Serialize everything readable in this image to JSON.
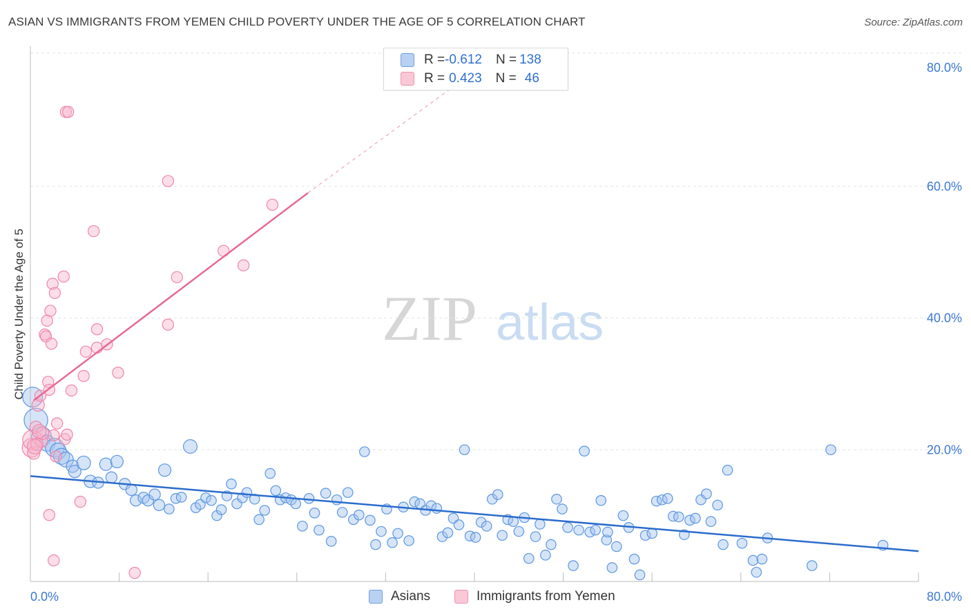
{
  "chart_data": {
    "type": "scatter",
    "title": "ASIAN VS IMMIGRANTS FROM YEMEN CHILD POVERTY UNDER THE AGE OF 5 CORRELATION CHART",
    "source": "Source: ZipAtlas.com",
    "xlabel": "",
    "ylabel": "Child Poverty Under the Age of 5",
    "xlim": [
      0,
      80
    ],
    "ylim": [
      0,
      82
    ],
    "x_tick_labels": [
      "0.0%",
      "80.0%"
    ],
    "y_ticks": [
      20,
      40,
      60,
      80
    ],
    "y_tick_labels": [
      "20.0%",
      "40.0%",
      "60.0%",
      "80.0%"
    ],
    "watermark": {
      "part1": "ZIP",
      "part2": "atlas"
    },
    "colors": {
      "asian": "#5b96e0",
      "yemen": "#ef87a8",
      "asian_line": "#2a6ccc",
      "yemen_line": "#e56a92",
      "tick_text": "#3b78d2"
    },
    "legend": {
      "rows": [
        {
          "r_label": "R = ",
          "r_value": "-0.612",
          "n_label": "N = ",
          "n_value": "138"
        },
        {
          "r_label": "R = ",
          "r_value": "0.423",
          "n_label": "N = ",
          "n_value": "46"
        }
      ]
    },
    "series": [
      {
        "name": "Asians",
        "trend": {
          "x": [
            0,
            80
          ],
          "y": [
            16.0,
            4.6
          ]
        },
        "points": [
          [
            0.2,
            28.0,
            1.6
          ],
          [
            0.5,
            24.5,
            1.9
          ],
          [
            1.0,
            22.0,
            1.6
          ],
          [
            1.5,
            21.0,
            1.3
          ],
          [
            2.2,
            20.3,
            1.5
          ],
          [
            2.5,
            19.8,
            1.3
          ],
          [
            2.8,
            19.0,
            1.3
          ],
          [
            3.2,
            18.5,
            1.2
          ],
          [
            3.8,
            17.5,
            1.0
          ],
          [
            4.0,
            16.7,
            1.0
          ],
          [
            4.8,
            18.0,
            1.1
          ],
          [
            5.4,
            15.2,
            1.0
          ],
          [
            6.1,
            15.0,
            0.9
          ],
          [
            6.8,
            17.8,
            1.0
          ],
          [
            7.3,
            15.8,
            0.9
          ],
          [
            7.8,
            18.2,
            1.0
          ],
          [
            8.5,
            14.8,
            0.9
          ],
          [
            9.1,
            13.9,
            0.9
          ],
          [
            9.5,
            12.3,
            0.9
          ],
          [
            10.2,
            12.7,
            0.9
          ],
          [
            10.6,
            12.3,
            0.9
          ],
          [
            11.2,
            13.2,
            0.9
          ],
          [
            11.6,
            11.6,
            0.9
          ],
          [
            12.1,
            16.9,
            1.0
          ],
          [
            12.5,
            11.0,
            0.8
          ],
          [
            13.1,
            12.6,
            0.8
          ],
          [
            13.6,
            12.8,
            0.8
          ],
          [
            14.4,
            20.5,
            1.1
          ],
          [
            14.9,
            11.2,
            0.8
          ],
          [
            15.3,
            11.7,
            0.8
          ],
          [
            15.8,
            12.7,
            0.8
          ],
          [
            16.3,
            12.3,
            0.8
          ],
          [
            16.8,
            10.0,
            0.8
          ],
          [
            17.2,
            10.9,
            0.8
          ],
          [
            17.7,
            13.0,
            0.8
          ],
          [
            18.1,
            14.8,
            0.8
          ],
          [
            18.6,
            11.8,
            0.8
          ],
          [
            19.1,
            12.7,
            0.8
          ],
          [
            19.5,
            13.5,
            0.8
          ],
          [
            20.2,
            12.5,
            0.8
          ],
          [
            20.6,
            9.4,
            0.8
          ],
          [
            21.1,
            10.8,
            0.8
          ],
          [
            21.6,
            16.4,
            0.8
          ],
          [
            22.1,
            13.8,
            0.8
          ],
          [
            22.5,
            12.4,
            0.8
          ],
          [
            23.0,
            12.7,
            0.8
          ],
          [
            23.5,
            12.4,
            0.8
          ],
          [
            23.9,
            11.8,
            0.8
          ],
          [
            24.5,
            8.4,
            0.8
          ],
          [
            25.1,
            12.6,
            0.8
          ],
          [
            25.6,
            10.4,
            0.8
          ],
          [
            26.0,
            7.8,
            0.8
          ],
          [
            26.6,
            13.4,
            0.8
          ],
          [
            27.1,
            6.1,
            0.8
          ],
          [
            27.6,
            12.4,
            0.8
          ],
          [
            28.1,
            10.5,
            0.8
          ],
          [
            28.6,
            13.5,
            0.8
          ],
          [
            29.1,
            9.4,
            0.8
          ],
          [
            29.6,
            10.1,
            0.8
          ],
          [
            30.1,
            19.7,
            0.8
          ],
          [
            30.6,
            9.3,
            0.8
          ],
          [
            31.1,
            5.6,
            0.8
          ],
          [
            31.6,
            7.6,
            0.8
          ],
          [
            32.1,
            11.0,
            0.8
          ],
          [
            32.6,
            5.9,
            0.8
          ],
          [
            33.1,
            7.3,
            0.8
          ],
          [
            33.6,
            11.3,
            0.8
          ],
          [
            34.1,
            6.2,
            0.8
          ],
          [
            34.6,
            12.1,
            0.8
          ],
          [
            35.1,
            11.8,
            0.8
          ],
          [
            35.6,
            10.8,
            0.8
          ],
          [
            36.1,
            11.5,
            0.8
          ],
          [
            36.6,
            11.1,
            0.8
          ],
          [
            37.1,
            6.8,
            0.8
          ],
          [
            37.6,
            7.4,
            0.8
          ],
          [
            38.1,
            9.6,
            0.8
          ],
          [
            38.6,
            8.6,
            0.8
          ],
          [
            39.1,
            20.0,
            0.8
          ],
          [
            39.6,
            6.9,
            0.8
          ],
          [
            40.1,
            6.7,
            0.8
          ],
          [
            40.6,
            9.0,
            0.8
          ],
          [
            41.1,
            8.4,
            0.8
          ],
          [
            41.6,
            12.5,
            0.8
          ],
          [
            42.1,
            13.2,
            0.8
          ],
          [
            42.5,
            7.0,
            0.8
          ],
          [
            43.0,
            9.4,
            0.8
          ],
          [
            43.5,
            9.1,
            0.8
          ],
          [
            44.0,
            7.6,
            0.8
          ],
          [
            44.5,
            9.7,
            0.8
          ],
          [
            44.9,
            3.5,
            0.8
          ],
          [
            45.5,
            6.8,
            0.8
          ],
          [
            45.9,
            8.7,
            0.8
          ],
          [
            46.4,
            4.0,
            0.8
          ],
          [
            46.9,
            5.6,
            0.8
          ],
          [
            47.4,
            12.5,
            0.8
          ],
          [
            47.9,
            11.0,
            0.8
          ],
          [
            48.4,
            8.2,
            0.8
          ],
          [
            48.9,
            2.4,
            0.8
          ],
          [
            49.4,
            7.8,
            0.8
          ],
          [
            49.9,
            19.8,
            0.8
          ],
          [
            50.4,
            7.5,
            0.8
          ],
          [
            50.9,
            7.8,
            0.8
          ],
          [
            51.4,
            12.3,
            0.8
          ],
          [
            51.9,
            6.3,
            0.8
          ],
          [
            52.4,
            2.1,
            0.8
          ],
          [
            52.8,
            5.3,
            0.8
          ],
          [
            53.4,
            10.0,
            0.8
          ],
          [
            53.9,
            8.2,
            0.8
          ],
          [
            54.4,
            3.4,
            0.8
          ],
          [
            54.9,
            1.0,
            0.8
          ],
          [
            55.4,
            7.0,
            0.8
          ],
          [
            56.0,
            7.3,
            0.8
          ],
          [
            56.4,
            12.2,
            0.8
          ],
          [
            56.9,
            12.4,
            0.8
          ],
          [
            57.4,
            12.6,
            0.8
          ],
          [
            57.9,
            9.9,
            0.8
          ],
          [
            58.4,
            9.8,
            0.8
          ],
          [
            58.9,
            7.1,
            0.8
          ],
          [
            59.4,
            9.3,
            0.8
          ],
          [
            59.9,
            9.6,
            0.8
          ],
          [
            60.4,
            12.4,
            0.8
          ],
          [
            60.9,
            13.3,
            0.8
          ],
          [
            61.3,
            9.1,
            0.8
          ],
          [
            61.9,
            11.6,
            0.8
          ],
          [
            62.4,
            5.6,
            0.8
          ],
          [
            62.8,
            16.9,
            0.8
          ],
          [
            64.1,
            5.8,
            0.8
          ],
          [
            65.1,
            3.2,
            0.8
          ],
          [
            65.4,
            1.4,
            0.8
          ],
          [
            65.9,
            3.4,
            0.8
          ],
          [
            66.4,
            6.6,
            0.8
          ],
          [
            70.4,
            2.4,
            0.8
          ],
          [
            72.1,
            20.0,
            0.8
          ],
          [
            76.8,
            5.5,
            0.8
          ],
          [
            52.0,
            7.5,
            0.8
          ]
        ]
      },
      {
        "name": "Immigrants from Yemen",
        "trend": {
          "x": [
            0.3,
            25.0
          ],
          "y": [
            27.5,
            59.0
          ],
          "x_ext": [
            25.0,
            38.0
          ],
          "y_ext": [
            59.0,
            75.0
          ]
        },
        "points": [
          [
            0.1,
            20.3,
            1.5
          ],
          [
            0.2,
            21.5,
            1.6
          ],
          [
            0.3,
            19.5,
            1.0
          ],
          [
            0.5,
            23.4,
            1.0
          ],
          [
            0.6,
            20.8,
            1.0
          ],
          [
            0.7,
            26.8,
            1.0
          ],
          [
            0.9,
            28.2,
            0.9
          ],
          [
            1.0,
            21.3,
            1.0
          ],
          [
            1.1,
            22.5,
            1.0
          ],
          [
            1.3,
            37.5,
            0.9
          ],
          [
            1.4,
            37.2,
            0.9
          ],
          [
            1.5,
            39.6,
            0.9
          ],
          [
            1.6,
            30.3,
            0.9
          ],
          [
            1.7,
            29.1,
            0.9
          ],
          [
            1.7,
            10.1,
            0.9
          ],
          [
            1.8,
            41.1,
            0.9
          ],
          [
            1.9,
            36.1,
            0.9
          ],
          [
            2.0,
            45.2,
            0.9
          ],
          [
            2.1,
            22.2,
            0.9
          ],
          [
            2.1,
            3.2,
            0.9
          ],
          [
            2.2,
            43.8,
            0.9
          ],
          [
            2.3,
            19.0,
            0.9
          ],
          [
            2.4,
            24.0,
            0.9
          ],
          [
            3.0,
            46.3,
            0.9
          ],
          [
            3.1,
            21.6,
            0.9
          ],
          [
            3.2,
            71.3,
            0.9
          ],
          [
            3.3,
            22.3,
            0.9
          ],
          [
            3.4,
            71.3,
            0.9
          ],
          [
            3.7,
            29.0,
            0.9
          ],
          [
            4.5,
            12.1,
            0.9
          ],
          [
            4.8,
            31.2,
            0.9
          ],
          [
            5.0,
            34.9,
            0.9
          ],
          [
            5.7,
            53.2,
            0.9
          ],
          [
            6.0,
            38.3,
            0.9
          ],
          [
            6.0,
            35.5,
            0.9
          ],
          [
            6.9,
            36.0,
            0.9
          ],
          [
            7.9,
            31.7,
            0.9
          ],
          [
            9.4,
            1.3,
            0.9
          ],
          [
            12.4,
            60.8,
            0.9
          ],
          [
            12.4,
            39.0,
            0.9
          ],
          [
            13.2,
            46.2,
            0.9
          ],
          [
            17.4,
            50.2,
            0.9
          ],
          [
            19.2,
            48.0,
            0.9
          ],
          [
            21.8,
            57.2,
            0.9
          ],
          [
            0.4,
            20.5,
            1.2
          ],
          [
            0.8,
            22.8,
            1.1
          ]
        ]
      }
    ]
  },
  "bottom_legend": {
    "asian_label": "Asians",
    "yemen_label": "Immigrants from Yemen"
  }
}
